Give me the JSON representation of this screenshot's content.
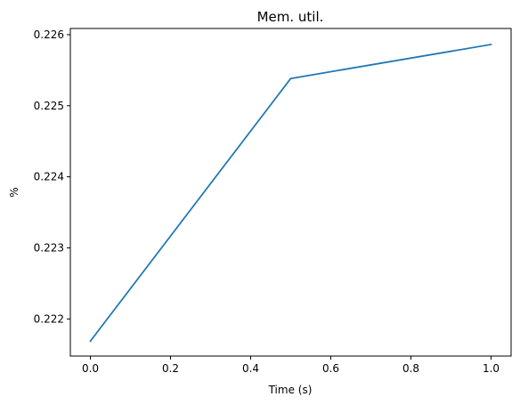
{
  "chart_data": {
    "type": "line",
    "title": "Mem. util.",
    "xlabel": "Time (s)",
    "ylabel": "%",
    "xlim": [
      -0.05,
      1.05
    ],
    "ylim": [
      0.221478,
      0.226087
    ],
    "xticks": [
      0.0,
      0.2,
      0.4,
      0.6,
      0.8,
      1.0
    ],
    "xtick_labels": [
      "0.0",
      "0.2",
      "0.4",
      "0.6",
      "0.8",
      "1.0"
    ],
    "yticks": [
      0.222,
      0.223,
      0.224,
      0.225,
      0.226
    ],
    "ytick_labels": [
      "0.222",
      "0.223",
      "0.224",
      "0.225",
      "0.226"
    ],
    "grid": false,
    "series": [
      {
        "color": "#1f77b4",
        "x": [
          0.0,
          0.5,
          1.0
        ],
        "y": [
          0.221688,
          0.225383,
          0.225862
        ]
      }
    ]
  }
}
